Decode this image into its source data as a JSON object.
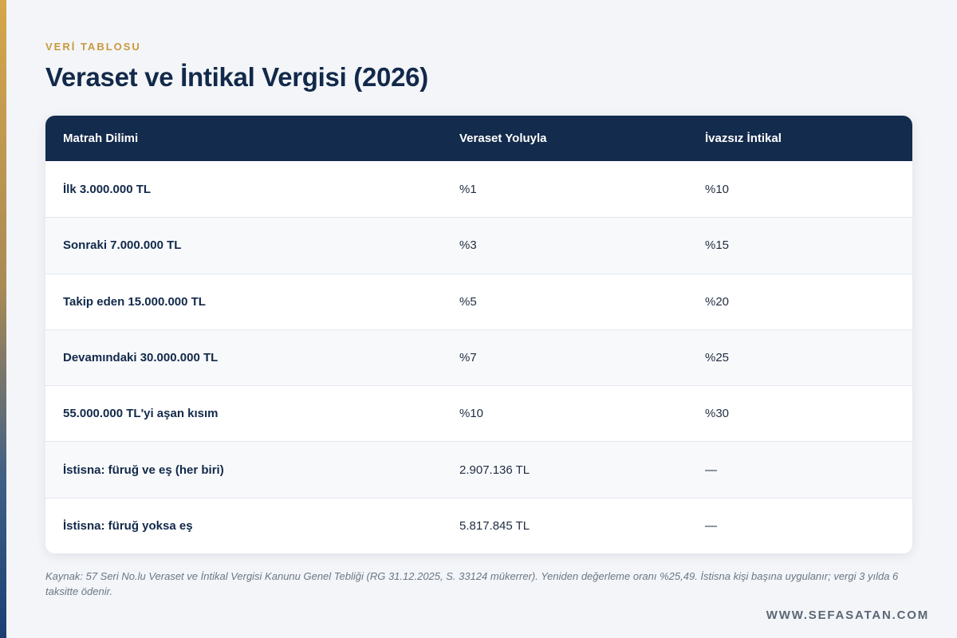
{
  "eyebrow": "VERİ TABLOSU",
  "title": "Veraset ve İntikal Vergisi (2026)",
  "table": {
    "headers": [
      "Matrah Dilimi",
      "Veraset Yoluyla",
      "İvazsız İntikal"
    ],
    "rows": [
      [
        "İlk 3.000.000 TL",
        "%1",
        "%10"
      ],
      [
        "Sonraki 7.000.000 TL",
        "%3",
        "%15"
      ],
      [
        "Takip eden 15.000.000 TL",
        "%5",
        "%20"
      ],
      [
        "Devamındaki 30.000.000 TL",
        "%7",
        "%25"
      ],
      [
        "55.000.000 TL'yi aşan kısım",
        "%10",
        "%30"
      ],
      [
        "İstisna: füruğ ve eş (her biri)",
        "2.907.136 TL",
        "—"
      ],
      [
        "İstisna: füruğ yoksa eş",
        "5.817.845 TL",
        "—"
      ]
    ]
  },
  "source_note": "Kaynak: 57 Seri No.lu Veraset ve İntikal Vergisi Kanunu Genel Tebliği (RG 31.12.2025, S. 33124 mükerrer). Yeniden değerleme oranı %25,49. İstisna kişi başına uygulanır; vergi 3 yılda 6 taksitte ödenir.",
  "website": "WWW.SEFASATAN.COM",
  "colors": {
    "header_bg": "#132b4c",
    "title": "#12294a",
    "eyebrow": "#c89a3c",
    "page_bg": "#f3f5f8"
  }
}
